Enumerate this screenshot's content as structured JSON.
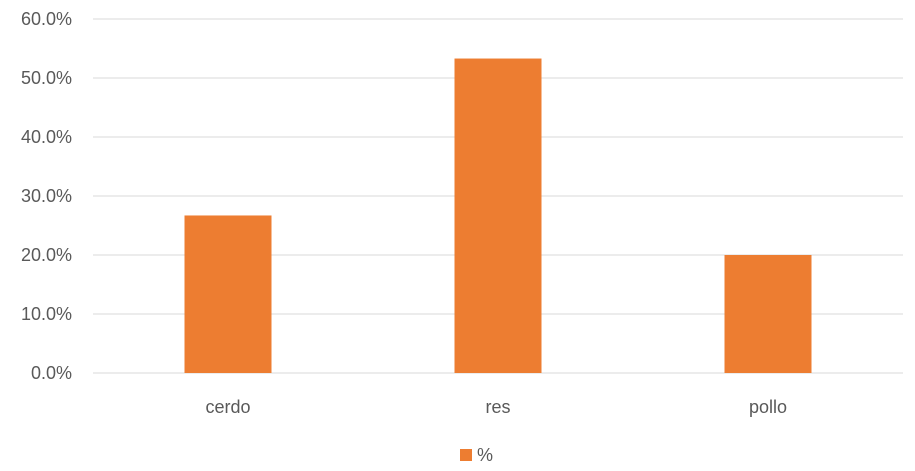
{
  "chart_data": {
    "type": "bar",
    "categories": [
      "cerdo",
      "res",
      "pollo"
    ],
    "series": [
      {
        "name": "%",
        "values": [
          26.7,
          53.3,
          20.0
        ],
        "color": "#ED7D31"
      }
    ],
    "ylim": [
      0,
      60
    ],
    "yticks": [
      "0.0%",
      "10.0%",
      "20.0%",
      "30.0%",
      "40.0%",
      "50.0%",
      "60.0%"
    ],
    "grid": true,
    "legend_position": "bottom"
  }
}
